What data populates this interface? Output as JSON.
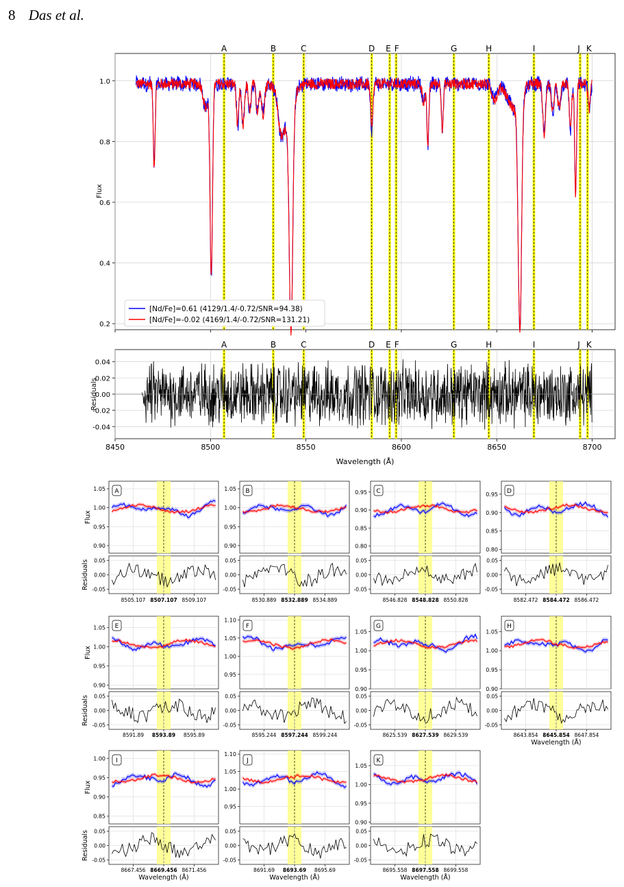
{
  "header": {
    "page_number": "8",
    "running_title": "Das et al."
  },
  "figure": {
    "main_panel": {
      "ylabel": "Flux",
      "yticks": [
        "1.0",
        "0.8",
        "0.6",
        "0.4",
        "0.2"
      ],
      "ylim": [
        0.18,
        1.09
      ],
      "xlim": [
        8450,
        8712
      ],
      "legend": [
        {
          "label": "[Nd/Fe]=0.61 (4129/1.4/-0.72/SNR=94.38)",
          "color": "#0000ff"
        },
        {
          "label": "[Nd/Fe]=-0.02 (4169/1.4/-0.72/SNR=131.21)",
          "color": "#ff0000"
        }
      ],
      "line_markers": [
        "A",
        "B",
        "C",
        "D",
        "E",
        "F",
        "G",
        "H",
        "I",
        "J",
        "K"
      ],
      "line_positions": [
        8507.107,
        8532.889,
        8548.828,
        8584.472,
        8593.89,
        8597.244,
        8627.539,
        8645.854,
        8669.456,
        8693.69,
        8697.558
      ]
    },
    "residual_panel": {
      "ylabel": "Residuals",
      "yticks": [
        "0.04",
        "0.02",
        "0.00",
        "-0.02",
        "-0.04"
      ],
      "xticks": [
        "8450",
        "8500",
        "8550",
        "8600",
        "8650",
        "8700"
      ],
      "xlabel": "Wavelength (Å)"
    },
    "subpanels": [
      {
        "id": "A",
        "center": "8507.107",
        "ticks": [
          "8505.107",
          "8507.107",
          "8509.107"
        ],
        "yticks": [
          "1.05",
          "1.00",
          "0.95",
          "0.90"
        ],
        "ylim": [
          0.88,
          1.07
        ]
      },
      {
        "id": "B",
        "center": "8532.889",
        "ticks": [
          "8530.889",
          "8532.889",
          "8534.889"
        ],
        "yticks": [
          "1.05",
          "1.00",
          "0.95",
          "0.90"
        ],
        "ylim": [
          0.88,
          1.07
        ]
      },
      {
        "id": "C",
        "center": "8548.828",
        "ticks": [
          "8546.828",
          "8548.828",
          "8550.828"
        ],
        "yticks": [
          "0.95",
          "0.90",
          "0.85",
          "0.80"
        ],
        "ylim": [
          0.78,
          0.98
        ]
      },
      {
        "id": "D",
        "center": "8584.472",
        "ticks": [
          "8582.472",
          "8584.472",
          "8586.472"
        ],
        "yticks": [
          "0.95",
          "0.90",
          "0.85",
          "0.80"
        ],
        "ylim": [
          0.79,
          0.985
        ]
      },
      {
        "id": "E",
        "center": "8593.89",
        "ticks": [
          "8591.89",
          "8593.89",
          "8595.89"
        ],
        "yticks": [
          "1.05",
          "1.00",
          "0.95",
          "0.90"
        ],
        "ylim": [
          0.89,
          1.08
        ]
      },
      {
        "id": "F",
        "center": "8597.244",
        "ticks": [
          "8595.244",
          "8597.244",
          "8599.244"
        ],
        "yticks": [
          "1.10",
          "1.05",
          "1.00",
          "0.95"
        ],
        "ylim": [
          0.91,
          1.11
        ]
      },
      {
        "id": "G",
        "center": "8627.539",
        "ticks": [
          "8625.539",
          "8627.539",
          "8629.539"
        ],
        "yticks": [
          "1.05",
          "1.00",
          "0.95",
          "0.90"
        ],
        "ylim": [
          0.9,
          1.09
        ]
      },
      {
        "id": "H",
        "center": "8645.854",
        "ticks": [
          "8643.854",
          "8645.854",
          "8647.854"
        ],
        "yticks": [
          "1.05",
          "1.00",
          "0.95",
          "0.90"
        ],
        "ylim": [
          0.9,
          1.09
        ]
      },
      {
        "id": "I",
        "center": "8669.456",
        "ticks": [
          "8667.456",
          "8669.456",
          "8671.456"
        ],
        "yticks": [
          "1.00",
          "0.95",
          "0.90",
          "0.85"
        ],
        "ylim": [
          0.83,
          1.02
        ]
      },
      {
        "id": "J",
        "center": "8693.69",
        "ticks": [
          "8691.69",
          "8693.69",
          "8695.69"
        ],
        "yticks": [
          "1.10",
          "1.05",
          "1.00",
          "0.95"
        ],
        "ylim": [
          0.9,
          1.11
        ]
      },
      {
        "id": "K",
        "center": "8697.558",
        "ticks": [
          "8695.558",
          "8697.558",
          "8699.558"
        ],
        "yticks": [
          "1.05",
          "1.00",
          "0.95",
          "0.90"
        ],
        "ylim": [
          0.895,
          1.09
        ]
      }
    ],
    "sub_labels": {
      "flux": "Flux",
      "residuals": "Residuals",
      "wavelength": "Wavelength (Å)",
      "res_ticks": [
        "0.05",
        "0.00",
        "-0.05"
      ]
    }
  }
}
